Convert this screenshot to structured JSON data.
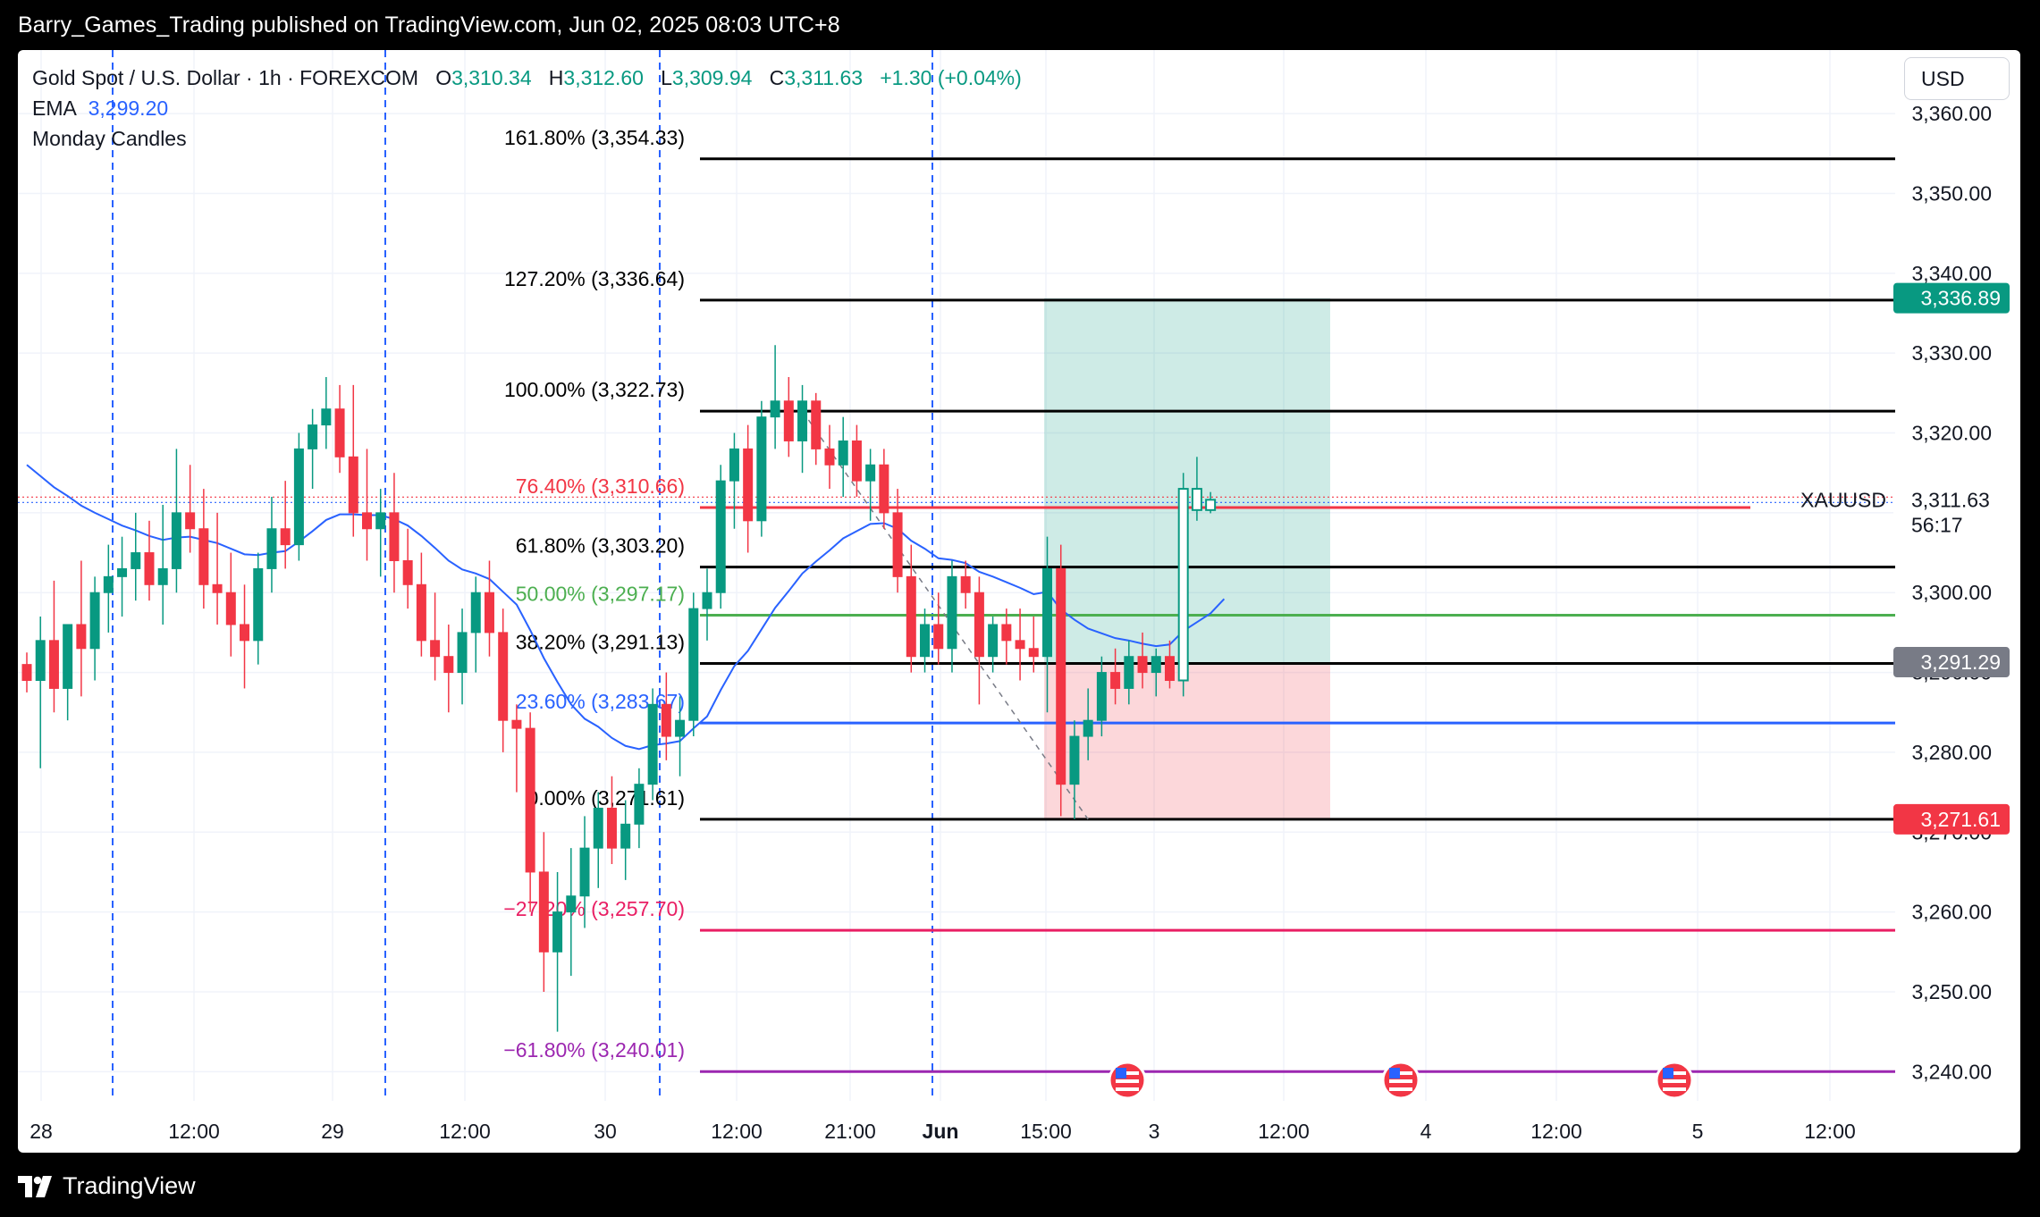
{
  "publish_line": "Barry_Games_Trading published on TradingView.com, Jun 02, 2025 08:03 UTC+8",
  "legend": {
    "symbol": "Gold Spot / U.S. Dollar · 1h · FOREXCOM",
    "o_label": "O",
    "o": "3,310.34",
    "h_label": "H",
    "h": "3,312.60",
    "l_label": "L",
    "l": "3,309.94",
    "c_label": "C",
    "c": "3,311.63",
    "change": "+1.30 (+0.04%)",
    "ema_label": "EMA",
    "ema": "3,299.20",
    "indicator2": "Monday Candles"
  },
  "currency": "USD",
  "brand": "TradingView",
  "colors": {
    "up": "#089981",
    "down": "#f23645",
    "ema": "#2962ff",
    "session_line": "#2962ff",
    "grid": "#f0f3fa",
    "profit_zone": "rgba(8,153,129,0.20)",
    "loss_zone": "rgba(242,54,69,0.20)"
  },
  "chart_data": {
    "type": "candlestick",
    "symbol": "XAUUSD",
    "interval": "1h",
    "ylim": [
      3235,
      3360
    ],
    "y_ticks": [
      "3,240.00",
      "3,250.00",
      "3,260.00",
      "3,270.00",
      "3,280.00",
      "3,290.00",
      "3,300.00",
      "3,310.00",
      "3,320.00",
      "3,330.00",
      "3,340.00",
      "3,350.00",
      "3,360.00"
    ],
    "x_ticks": [
      "28",
      "12:00",
      "29",
      "12:00",
      "30",
      "12:00",
      "21:00",
      "Jun",
      "15:00",
      "3",
      "12:00",
      "4",
      "12:00",
      "5",
      "12:00"
    ],
    "session_markers": [
      "28 18:00",
      "29 18:00",
      "30 18:00",
      "Jun 01 23:00"
    ],
    "candles_ohlc": [
      [
        3291.0,
        3292.5,
        3287.5,
        3289.0
      ],
      [
        3289.0,
        3297.0,
        3278.0,
        3294.0
      ],
      [
        3294.0,
        3301.5,
        3285.0,
        3288.0
      ],
      [
        3288.0,
        3295.0,
        3284.0,
        3296.0
      ],
      [
        3296.0,
        3304.0,
        3287.0,
        3293.0
      ],
      [
        3293.0,
        3302.0,
        3289.0,
        3300.0
      ],
      [
        3300.0,
        3306.0,
        3295.0,
        3302.0
      ],
      [
        3302.0,
        3307.0,
        3297.0,
        3303.0
      ],
      [
        3303.0,
        3310.0,
        3299.0,
        3305.0
      ],
      [
        3305.0,
        3309.0,
        3299.0,
        3301.0
      ],
      [
        3301.0,
        3311.0,
        3296.0,
        3303.0
      ],
      [
        3303.0,
        3318.0,
        3300.0,
        3310.0
      ],
      [
        3310.0,
        3316.0,
        3305.0,
        3308.0
      ],
      [
        3308.0,
        3313.0,
        3298.0,
        3301.0
      ],
      [
        3301.0,
        3310.0,
        3296.0,
        3300.0
      ],
      [
        3300.0,
        3305.0,
        3292.0,
        3296.0
      ],
      [
        3296.0,
        3301.0,
        3288.0,
        3294.0
      ],
      [
        3294.0,
        3305.0,
        3291.0,
        3303.0
      ],
      [
        3303.0,
        3312.0,
        3300.0,
        3308.0
      ],
      [
        3308.0,
        3314.0,
        3303.0,
        3306.0
      ],
      [
        3306.0,
        3320.0,
        3304.0,
        3318.0
      ],
      [
        3318.0,
        3323.0,
        3313.0,
        3321.0
      ],
      [
        3321.0,
        3327.0,
        3318.0,
        3323.0
      ],
      [
        3323.0,
        3326.0,
        3315.0,
        3317.0
      ],
      [
        3317.0,
        3326.0,
        3307.0,
        3310.0
      ],
      [
        3310.0,
        3318.0,
        3304.0,
        3308.0
      ],
      [
        3308.0,
        3313.0,
        3302.0,
        3310.0
      ],
      [
        3310.0,
        3315.0,
        3300.0,
        3304.0
      ],
      [
        3304.0,
        3308.0,
        3298.0,
        3301.0
      ],
      [
        3301.0,
        3305.0,
        3292.0,
        3294.0
      ],
      [
        3294.0,
        3300.0,
        3289.0,
        3292.0
      ],
      [
        3292.0,
        3296.0,
        3285.0,
        3290.0
      ],
      [
        3290.0,
        3298.0,
        3286.0,
        3295.0
      ],
      [
        3295.0,
        3302.0,
        3290.0,
        3300.0
      ],
      [
        3300.0,
        3304.0,
        3292.0,
        3295.0
      ],
      [
        3295.0,
        3298.0,
        3280.0,
        3284.0
      ],
      [
        3284.0,
        3286.0,
        3275.0,
        3283.0
      ],
      [
        3283.0,
        3285.0,
        3260.0,
        3265.0
      ],
      [
        3265.0,
        3270.0,
        3250.0,
        3255.0
      ],
      [
        3255.0,
        3265.0,
        3245.0,
        3260.0
      ],
      [
        3260.0,
        3268.0,
        3252.0,
        3262.0
      ],
      [
        3262.0,
        3272.0,
        3258.0,
        3268.0
      ],
      [
        3268.0,
        3275.0,
        3263.0,
        3273.0
      ],
      [
        3273.0,
        3277.0,
        3266.0,
        3268.0
      ],
      [
        3268.0,
        3274.0,
        3264.0,
        3271.0
      ],
      [
        3271.0,
        3278.0,
        3268.0,
        3276.0
      ],
      [
        3276.0,
        3288.0,
        3274.0,
        3286.0
      ],
      [
        3286.0,
        3290.0,
        3279.0,
        3282.0
      ],
      [
        3282.0,
        3287.0,
        3277.0,
        3284.0
      ],
      [
        3284.0,
        3300.0,
        3282.0,
        3298.0
      ],
      [
        3298.0,
        3303.0,
        3294.0,
        3300.0
      ],
      [
        3300.0,
        3316.0,
        3298.0,
        3314.0
      ],
      [
        3314.0,
        3320.0,
        3308.0,
        3318.0
      ],
      [
        3318.0,
        3321.0,
        3305.0,
        3309.0
      ],
      [
        3309.0,
        3324.0,
        3307.0,
        3322.0
      ],
      [
        3322.0,
        3331.0,
        3318.0,
        3324.0
      ],
      [
        3324.0,
        3327.0,
        3317.0,
        3319.0
      ],
      [
        3319.0,
        3326.0,
        3315.0,
        3324.0
      ],
      [
        3324.0,
        3325.0,
        3316.0,
        3318.0
      ],
      [
        3318.0,
        3321.0,
        3313.0,
        3316.0
      ],
      [
        3316.0,
        3322.0,
        3312.0,
        3319.0
      ],
      [
        3319.0,
        3321.0,
        3312.0,
        3314.0
      ],
      [
        3314.0,
        3318.0,
        3309.0,
        3316.0
      ],
      [
        3316.0,
        3318.0,
        3308.0,
        3310.0
      ],
      [
        3310.0,
        3313.0,
        3300.0,
        3302.0
      ],
      [
        3302.0,
        3306.0,
        3290.0,
        3292.0
      ],
      [
        3292.0,
        3298.0,
        3290.0,
        3296.0
      ],
      [
        3296.0,
        3300.0,
        3291.0,
        3293.0
      ],
      [
        3293.0,
        3304.0,
        3290.0,
        3302.0
      ],
      [
        3302.0,
        3304.0,
        3298.0,
        3300.0
      ],
      [
        3300.0,
        3302.0,
        3286.0,
        3292.0
      ],
      [
        3292.0,
        3297.0,
        3290.0,
        3296.0
      ],
      [
        3296.0,
        3298.0,
        3291.0,
        3294.0
      ],
      [
        3294.0,
        3298.0,
        3289.0,
        3293.0
      ],
      [
        3293.0,
        3297.0,
        3290.0,
        3292.0
      ],
      [
        3292.0,
        3307.0,
        3285.0,
        3303.0
      ],
      [
        3303.0,
        3306.0,
        3272.0,
        3276.0
      ],
      [
        3276.0,
        3284.0,
        3271.61,
        3282.0
      ],
      [
        3282.0,
        3288.0,
        3279.0,
        3284.0
      ],
      [
        3284.0,
        3292.0,
        3282.0,
        3290.0
      ],
      [
        3290.0,
        3293.0,
        3286.0,
        3288.0
      ],
      [
        3288.0,
        3294.0,
        3286.0,
        3292.0
      ],
      [
        3292.0,
        3295.0,
        3288.0,
        3290.0
      ],
      [
        3290.0,
        3293.0,
        3287.0,
        3292.0
      ],
      [
        3292.0,
        3294.0,
        3288.0,
        3289.0
      ],
      [
        3289.0,
        3315.0,
        3287.0,
        3313.0
      ],
      [
        3313.0,
        3317.0,
        3309.0,
        3310.34
      ],
      [
        3310.34,
        3312.6,
        3309.94,
        3311.63
      ]
    ],
    "ema": [
      3316.0,
      3314.6,
      3313.2,
      3312.1,
      3310.9,
      3310.0,
      3309.2,
      3308.4,
      3307.8,
      3307.1,
      3306.6,
      3306.9,
      3307.0,
      3306.6,
      3306.2,
      3305.5,
      3304.8,
      3304.7,
      3305.0,
      3305.2,
      3306.4,
      3307.7,
      3309.1,
      3309.8,
      3309.8,
      3309.7,
      3309.7,
      3309.2,
      3308.4,
      3307.1,
      3305.6,
      3304.0,
      3302.9,
      3302.4,
      3301.7,
      3300.1,
      3298.5,
      3295.3,
      3291.8,
      3288.8,
      3286.0,
      3284.2,
      3283.2,
      3281.8,
      3280.8,
      3280.4,
      3280.9,
      3281.1,
      3281.4,
      3283.0,
      3284.5,
      3287.8,
      3290.8,
      3292.7,
      3295.4,
      3298.1,
      3300.2,
      3302.4,
      3303.9,
      3305.3,
      3306.8,
      3307.7,
      3308.6,
      3308.7,
      3308.0,
      3306.5,
      3305.5,
      3304.3,
      3304.1,
      3303.7,
      3302.6,
      3302.0,
      3301.3,
      3300.6,
      3299.8,
      3300.1,
      3297.9,
      3296.6,
      3295.5,
      3294.9,
      3294.3,
      3294.0,
      3293.6,
      3293.3,
      3293.5,
      3295.2,
      3296.3,
      3297.4,
      3299.2
    ],
    "fib_levels": [
      {
        "ratio": "161.80%",
        "price": 3354.33,
        "label": "161.80% (3,354.33)",
        "color": "#000000"
      },
      {
        "ratio": "127.20%",
        "price": 3336.64,
        "label": "127.20% (3,336.64)",
        "color": "#000000"
      },
      {
        "ratio": "100.00%",
        "price": 3322.73,
        "label": "100.00% (3,322.73)",
        "color": "#000000"
      },
      {
        "ratio": "76.40%",
        "price": 3310.66,
        "label": "76.40% (3,310.66)",
        "color": "#f23645"
      },
      {
        "ratio": "61.80%",
        "price": 3303.2,
        "label": "61.80% (3,303.20)",
        "color": "#000000"
      },
      {
        "ratio": "50.00%",
        "price": 3297.17,
        "label": "50.00% (3,297.17)",
        "color": "#4caf50"
      },
      {
        "ratio": "38.20%",
        "price": 3291.13,
        "label": "38.20% (3,291.13)",
        "color": "#000000"
      },
      {
        "ratio": "23.60%",
        "price": 3283.67,
        "label": "23.60% (3,283.67)",
        "color": "#2962ff"
      },
      {
        "ratio": "0.00%",
        "price": 3271.61,
        "label": "0.00% (3,271.61)",
        "color": "#000000"
      },
      {
        "ratio": "-27.20%",
        "price": 3257.7,
        "label": "−27.20% (3,257.70)",
        "color": "#e91e63"
      },
      {
        "ratio": "-61.80%",
        "price": 3240.01,
        "label": "−61.80% (3,240.01)",
        "color": "#9c27b0"
      }
    ],
    "position_tool": {
      "entry": 3291.29,
      "target": 3336.89,
      "stop": 3271.61
    },
    "price_badges": [
      {
        "text": "3,336.89",
        "price": 3336.89,
        "bg": "#089981"
      },
      {
        "text": "3,291.29",
        "price": 3291.29,
        "bg": "#787b86"
      },
      {
        "text": "3,271.61",
        "price": 3271.61,
        "bg": "#f23645"
      }
    ],
    "last_price": {
      "symbol_label": "XAUUSD",
      "value": "3,311.63",
      "price": 3311.63,
      "countdown": "56:17"
    },
    "events": [
      "US economic event",
      "US economic event",
      "US economic event"
    ]
  }
}
